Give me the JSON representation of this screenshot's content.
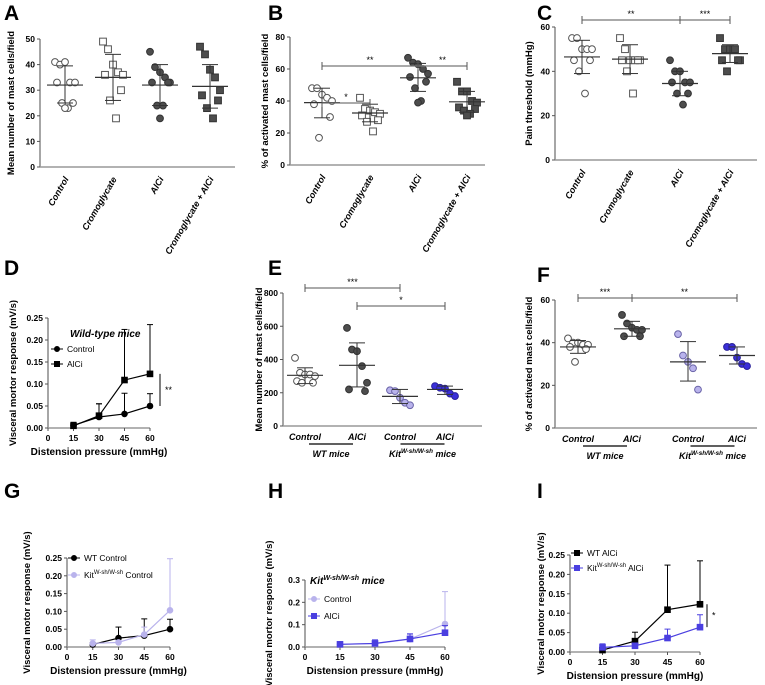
{
  "chart_data": [
    {
      "panel": "A",
      "type": "scatter",
      "ylabel": "Mean number of  mast cells/field",
      "ylim": [
        0,
        50
      ],
      "yticks": [
        0,
        10,
        20,
        30,
        40,
        50
      ],
      "categories": [
        "Control",
        "Cromoglycate",
        "AlCi",
        "Cromoglycate + AlCi"
      ],
      "markers": [
        "open-circle",
        "open-square",
        "filled-circle",
        "filled-square"
      ],
      "values": [
        [
          41,
          40,
          41,
          33,
          33,
          33,
          25,
          25,
          23,
          23
        ],
        [
          49,
          46,
          40,
          37,
          36,
          36,
          30,
          26,
          19
        ],
        [
          45,
          39,
          37,
          35,
          33,
          33,
          33,
          24,
          24,
          19
        ],
        [
          47,
          44,
          38,
          35,
          30,
          28,
          26,
          23,
          19
        ]
      ],
      "mean": [
        32,
        35,
        32,
        31.5
      ],
      "sd_low": [
        25,
        26,
        24,
        23
      ],
      "sd_high": [
        39.5,
        44,
        40,
        40
      ],
      "comparisons": []
    },
    {
      "panel": "B",
      "type": "scatter",
      "ylabel": "% of activated mast cells/field",
      "ylim": [
        0,
        80
      ],
      "yticks": [
        0,
        20,
        40,
        60,
        80
      ],
      "categories": [
        "Control",
        "Cromoglycate",
        "AlCi",
        "Cromoglycate + AlCi"
      ],
      "markers": [
        "open-circle",
        "open-square",
        "filled-circle",
        "filled-square"
      ],
      "values": [
        [
          48,
          48,
          44,
          42,
          40,
          38,
          30,
          17
        ],
        [
          42,
          35,
          34,
          33,
          32,
          31,
          28,
          27,
          21
        ],
        [
          67,
          64,
          63,
          60,
          57,
          55,
          52,
          48,
          40,
          39
        ],
        [
          52,
          46,
          46,
          40,
          39,
          36,
          35,
          34,
          32,
          31
        ]
      ],
      "mean": [
        39,
        32.5,
        54.5,
        39.5
      ],
      "sd_low": [
        29.5,
        27,
        46,
        33
      ],
      "sd_high": [
        48,
        38,
        63.5,
        46
      ],
      "comparisons": [
        {
          "from": 0,
          "to": 1,
          "label": "*"
        },
        {
          "from": 0,
          "to": 2,
          "label": "**"
        },
        {
          "from": 2,
          "to": 3,
          "label": "**"
        }
      ]
    },
    {
      "panel": "C",
      "type": "scatter",
      "ylabel": "Pain threshold (mmHg)",
      "ylim": [
        0,
        60
      ],
      "yticks": [
        0,
        20,
        40,
        60
      ],
      "categories": [
        "Control",
        "Cromoglycate",
        "AlCi",
        "Cromoglycate + AlCi"
      ],
      "markers": [
        "open-circle",
        "open-square",
        "filled-circle",
        "filled-square"
      ],
      "values": [
        [
          55,
          55,
          50,
          50,
          50,
          45,
          45,
          40,
          30
        ],
        [
          55,
          50,
          45,
          45,
          45,
          45,
          45,
          40,
          30
        ],
        [
          45,
          40,
          40,
          35,
          35,
          35,
          30,
          30,
          25
        ],
        [
          55,
          50,
          50,
          50,
          45,
          45,
          45,
          40
        ]
      ],
      "mean": [
        46.5,
        45.5,
        34.5,
        48
      ],
      "sd_low": [
        39,
        39,
        29,
        44
      ],
      "sd_high": [
        54,
        52,
        40,
        52
      ],
      "comparisons": [
        {
          "from": 0,
          "to": 2,
          "label": "**"
        },
        {
          "from": 2,
          "to": 3,
          "label": "***"
        }
      ]
    },
    {
      "panel": "D",
      "type": "line",
      "title": "Wild-type mice",
      "xlabel": "Distension pressure (mmHg)",
      "ylabel": "Visceral mortor response (mV/s)",
      "xlim": [
        0,
        60
      ],
      "xticks": [
        0,
        15,
        30,
        45,
        60
      ],
      "ylim": [
        0,
        0.25
      ],
      "yticks": [
        "0.00",
        "0.05",
        "0.10",
        "0.15",
        "0.20",
        "0.25"
      ],
      "x": [
        15,
        30,
        45,
        60
      ],
      "series": [
        {
          "name": "Control",
          "marker": "circle",
          "color": "#000000",
          "values": [
            0.006,
            0.025,
            0.032,
            0.05
          ],
          "error": [
            0.007,
            0.03,
            0.047,
            0.028
          ]
        },
        {
          "name": "AlCi",
          "marker": "square",
          "color": "#000000",
          "values": [
            0.005,
            0.028,
            0.109,
            0.123
          ],
          "error": [
            0.003,
            0.027,
            0.115,
            0.112
          ]
        }
      ],
      "significance": "**"
    },
    {
      "panel": "E",
      "type": "scatter",
      "ylabel": "Mean number of mast cells/field",
      "ylim": [
        0,
        800
      ],
      "yticks": [
        0,
        200,
        400,
        600,
        800
      ],
      "categories": [
        "Control",
        "AlCi",
        "Control",
        "AlCi"
      ],
      "groups": [
        {
          "label": "WT mice"
        },
        {
          "label": "Kit",
          "sup": "W-sh/W-sh",
          "suffix": " mice"
        }
      ],
      "markers": [
        "open-circle",
        "filled-circle",
        "light-circle",
        "blue-circle"
      ],
      "values": [
        [
          410,
          320,
          310,
          310,
          300,
          270,
          260,
          260
        ],
        [
          590,
          460,
          450,
          360,
          260,
          220,
          210
        ],
        [
          215,
          210,
          170,
          140,
          125
        ],
        [
          240,
          230,
          225,
          195,
          180
        ]
      ],
      "mean": [
        305,
        365,
        178,
        220
      ],
      "sd_low": [
        255,
        235,
        135,
        190
      ],
      "sd_high": [
        350,
        500,
        220,
        240
      ],
      "comparisons": [
        {
          "from": 0,
          "to": 2,
          "label": "***"
        },
        {
          "from": 1,
          "to": 3,
          "label": "*"
        }
      ]
    },
    {
      "panel": "F",
      "type": "scatter",
      "ylabel": "% of activated mast cells/field",
      "ylim": [
        0,
        60
      ],
      "yticks": [
        0,
        20,
        40,
        60
      ],
      "categories": [
        "Control",
        "AlCi",
        "Control",
        "AlCi"
      ],
      "groups": [
        {
          "label": "WT mice"
        },
        {
          "label": "Kit",
          "sup": "W-sh/W-sh",
          "suffix": " mice"
        }
      ],
      "markers": [
        "open-circle",
        "filled-circle",
        "light-circle",
        "blue-circle"
      ],
      "values": [
        [
          42,
          40,
          40,
          39,
          39,
          38,
          37,
          31
        ],
        [
          53,
          49,
          47,
          46,
          46,
          43,
          43
        ],
        [
          44,
          34,
          31,
          28,
          18
        ],
        [
          38,
          38,
          33,
          30,
          29
        ]
      ],
      "mean": [
        38,
        46.5,
        31,
        34
      ],
      "sd_low": [
        35,
        43,
        22,
        30
      ],
      "sd_high": [
        41,
        50,
        40.5,
        38
      ],
      "comparisons": [
        {
          "from": 0,
          "to": 1,
          "label": "***"
        },
        {
          "from": 1,
          "to": 3,
          "label": "**"
        }
      ]
    },
    {
      "panel": "G",
      "type": "line",
      "xlabel": "Distension pressure (mmHg)",
      "ylabel": "Visceral motor response (mV/s)",
      "xlim": [
        0,
        60
      ],
      "xticks": [
        0,
        15,
        30,
        45,
        60
      ],
      "ylim": [
        0,
        0.25
      ],
      "yticks": [
        "0.00",
        "0.05",
        "0.10",
        "0.15",
        "0.20",
        "0.25"
      ],
      "x": [
        15,
        30,
        45,
        60
      ],
      "series": [
        {
          "name": "WT Control",
          "marker": "circle",
          "color": "#000000",
          "values": [
            0.007,
            0.025,
            0.032,
            0.05
          ],
          "error": [
            0.005,
            0.031,
            0.047,
            0.028
          ]
        },
        {
          "name": "Kit",
          "sup": "W-sh/W-sh",
          "suffix": " Control",
          "marker": "circle",
          "color": "#b9b3ec",
          "values": [
            0.01,
            0.013,
            0.035,
            0.103
          ],
          "error": [
            0.01,
            0.005,
            0.021,
            0.145
          ]
        }
      ]
    },
    {
      "panel": "H",
      "type": "line",
      "title": {
        "label": "Kit",
        "sup": "W-sh/W-sh",
        "suffix": " mice"
      },
      "xlabel": "Distension pressure (mmHg)",
      "ylabel": "Visceral mortor response (mV/s)",
      "xlim": [
        0,
        60
      ],
      "xticks": [
        0,
        15,
        30,
        45,
        60
      ],
      "ylim": [
        0,
        0.3
      ],
      "yticks": [
        "0.0",
        "0.1",
        "0.2",
        "0.3"
      ],
      "x": [
        15,
        30,
        45,
        60
      ],
      "series": [
        {
          "name": "Control",
          "marker": "circle",
          "color": "#b9b3ec",
          "values": [
            0.012,
            0.015,
            0.035,
            0.103
          ],
          "error": [
            0.008,
            0.01,
            0.02,
            0.145
          ]
        },
        {
          "name": "AlCi",
          "marker": "square",
          "color": "#4a3fe0",
          "values": [
            0.012,
            0.016,
            0.036,
            0.064
          ],
          "error": [
            0.006,
            0.016,
            0.023,
            0.032
          ]
        }
      ]
    },
    {
      "panel": "I",
      "type": "line",
      "xlabel": "Distension pressure (mmHg)",
      "ylabel": "Visceral motor response (mV/s)",
      "xlim": [
        0,
        60
      ],
      "xticks": [
        0,
        15,
        30,
        45,
        60
      ],
      "ylim": [
        0,
        0.25
      ],
      "yticks": [
        "0.00",
        "0.05",
        "0.10",
        "0.15",
        "0.20",
        "0.25"
      ],
      "x": [
        15,
        30,
        45,
        60
      ],
      "series": [
        {
          "name": "WT AlCi",
          "marker": "square",
          "color": "#000000",
          "values": [
            0.005,
            0.028,
            0.109,
            0.123
          ],
          "error": [
            0.003,
            0.023,
            0.115,
            0.112
          ]
        },
        {
          "name": "Kit",
          "sup": "W-sh/W-sh",
          "suffix": " AlCi",
          "marker": "square",
          "color": "#4a3fe0",
          "values": [
            0.012,
            0.016,
            0.036,
            0.064
          ],
          "error": [
            0.009,
            0.004,
            0.023,
            0.032
          ]
        }
      ],
      "significance": "*"
    }
  ]
}
